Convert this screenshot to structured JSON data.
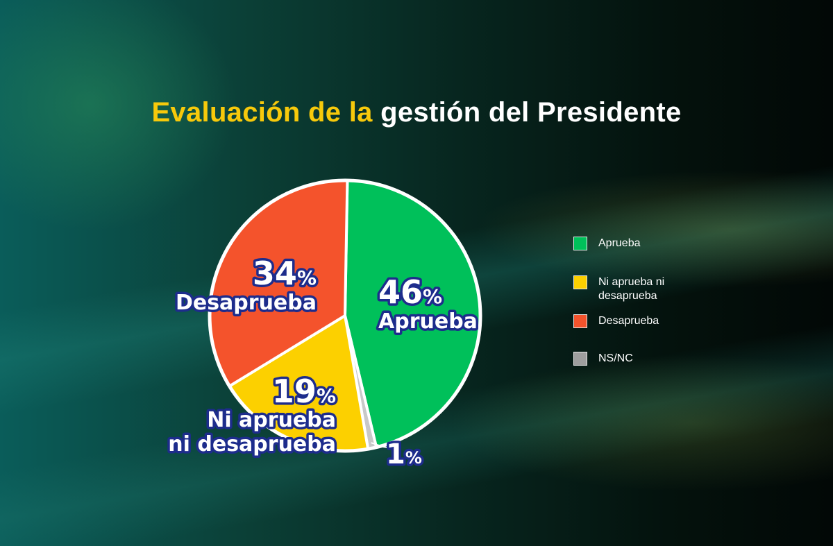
{
  "title": {
    "part1": "Evaluación de la",
    "part2": "gestión del Presidente"
  },
  "legend": {
    "items": [
      {
        "label": "Aprueba",
        "color": "#00c05a"
      },
      {
        "label": "Ni aprueba ni desaprueba",
        "color": "#fcd000"
      },
      {
        "label": "Desaprueba",
        "color": "#f4532c"
      },
      {
        "label": "NS/NC",
        "color": "#9e9e9e"
      }
    ]
  },
  "chart_data": {
    "type": "pie",
    "title": "Evaluación de la gestión del Presidente",
    "legend_position": "right",
    "slices": [
      {
        "label": "Aprueba",
        "value": 46,
        "color": "#00c05a",
        "pct": "46",
        "name_lines": [
          "Aprueba"
        ]
      },
      {
        "label": "NS/NC",
        "value": 1,
        "color": "#c8c8c8",
        "pct": "1",
        "name_lines": []
      },
      {
        "label": "Ni aprueba ni desaprueba",
        "value": 19,
        "color": "#fcd000",
        "pct": "19",
        "name_lines": [
          "Ni aprueba",
          "ni desaprueba"
        ]
      },
      {
        "label": "Desaprueba",
        "value": 34,
        "color": "#f4532c",
        "pct": "34",
        "name_lines": [
          "Desaprueba"
        ]
      }
    ]
  }
}
